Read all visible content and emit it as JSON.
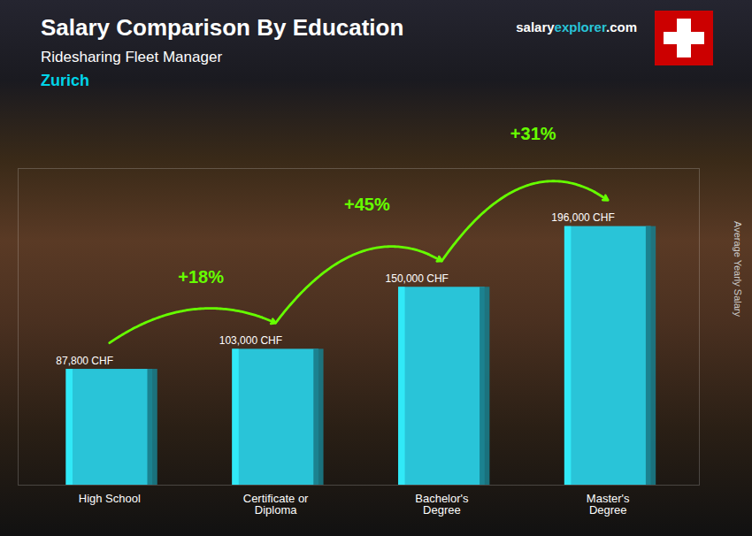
{
  "chart_data": {
    "type": "bar",
    "title": "Salary Comparison By Education",
    "subtitle": "Ridesharing Fleet Manager",
    "categories": [
      "High School",
      "Certificate or\nDiploma",
      "Bachelor's\nDegree",
      "Master's\nDegree"
    ],
    "values": [
      87800,
      103000,
      150000,
      196000
    ],
    "value_labels": [
      "87,800 CHF",
      "103,000 CHF",
      "150,000 CHF",
      "196,000 CHF"
    ],
    "data_labels": true,
    "color": "#29c4d8",
    "ylabel": "Average Yearly Salary",
    "ylim": [
      0,
      240000
    ],
    "tick_labels": "x",
    "annotations": [
      {
        "text": "Zurich",
        "color": "#00d4e8"
      },
      {
        "parts": [
          {
            "text": "salary",
            "color": "#ffffff"
          },
          {
            "text": "explorer",
            "color": "#29c4d8"
          },
          {
            "text": ".com",
            "color": "#ffffff"
          }
        ]
      },
      {
        "text": "+18%",
        "from": "High School",
        "to": "Certificate or\nDiploma",
        "color": "#66ff00"
      },
      {
        "text": "+45%",
        "from": "Certificate or\nDiploma",
        "to": "Bachelor's\nDegree",
        "color": "#66ff00"
      },
      {
        "text": "+31%",
        "from": "Bachelor's\nDegree",
        "to": "Master's\nDegree",
        "color": "#66ff00"
      }
    ]
  }
}
